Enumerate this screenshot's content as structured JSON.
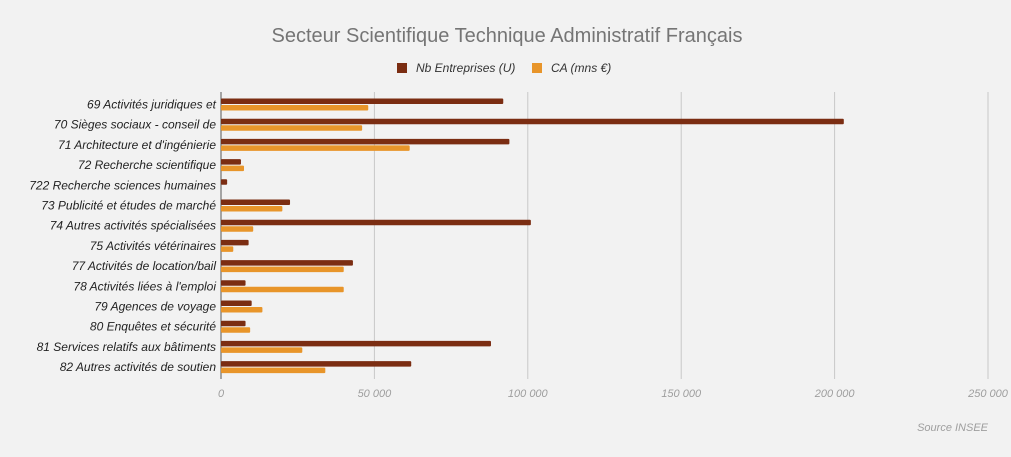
{
  "chart_data": {
    "type": "bar",
    "orientation": "horizontal",
    "title": "Secteur Scientifique Technique Administratif Français",
    "legend_position": "top",
    "categories": [
      "69 Activités juridiques et",
      "70 Sièges sociaux - conseil de",
      "71 Architecture et d'ingénierie",
      "72 Recherche scientifique",
      "722 Recherche sciences humaines",
      "73 Publicité et études de marché",
      "74 Autres activités spécialisées",
      "75 Activités vétérinaires",
      "77 Activités de location/bail",
      "78 Activités liées à l'emploi",
      "79 Agences de voyage",
      "80 Enquêtes et sécurité",
      "81 Services relatifs aux bâtiments",
      "82 Autres activités de soutien"
    ],
    "series": [
      {
        "name": "Nb Entreprises (U)",
        "color": "#7b2d12",
        "values": [
          92000,
          203000,
          94000,
          6500,
          2000,
          22500,
          101000,
          9000,
          43000,
          8000,
          10000,
          8000,
          88000,
          62000
        ]
      },
      {
        "name": "CA (mns €)",
        "color": "#e8952a",
        "values": [
          48000,
          46000,
          61500,
          7500,
          0,
          20000,
          10500,
          4000,
          40000,
          40000,
          13500,
          9500,
          26500,
          34000
        ]
      }
    ],
    "xlim": [
      0,
      250000
    ],
    "xticks": [
      0,
      50000,
      100000,
      150000,
      200000,
      250000
    ],
    "xtick_labels": [
      "0",
      "50 000",
      "100 000",
      "150 000",
      "200 000",
      "250 000"
    ],
    "grid": true
  },
  "source_note": "Source INSEE"
}
